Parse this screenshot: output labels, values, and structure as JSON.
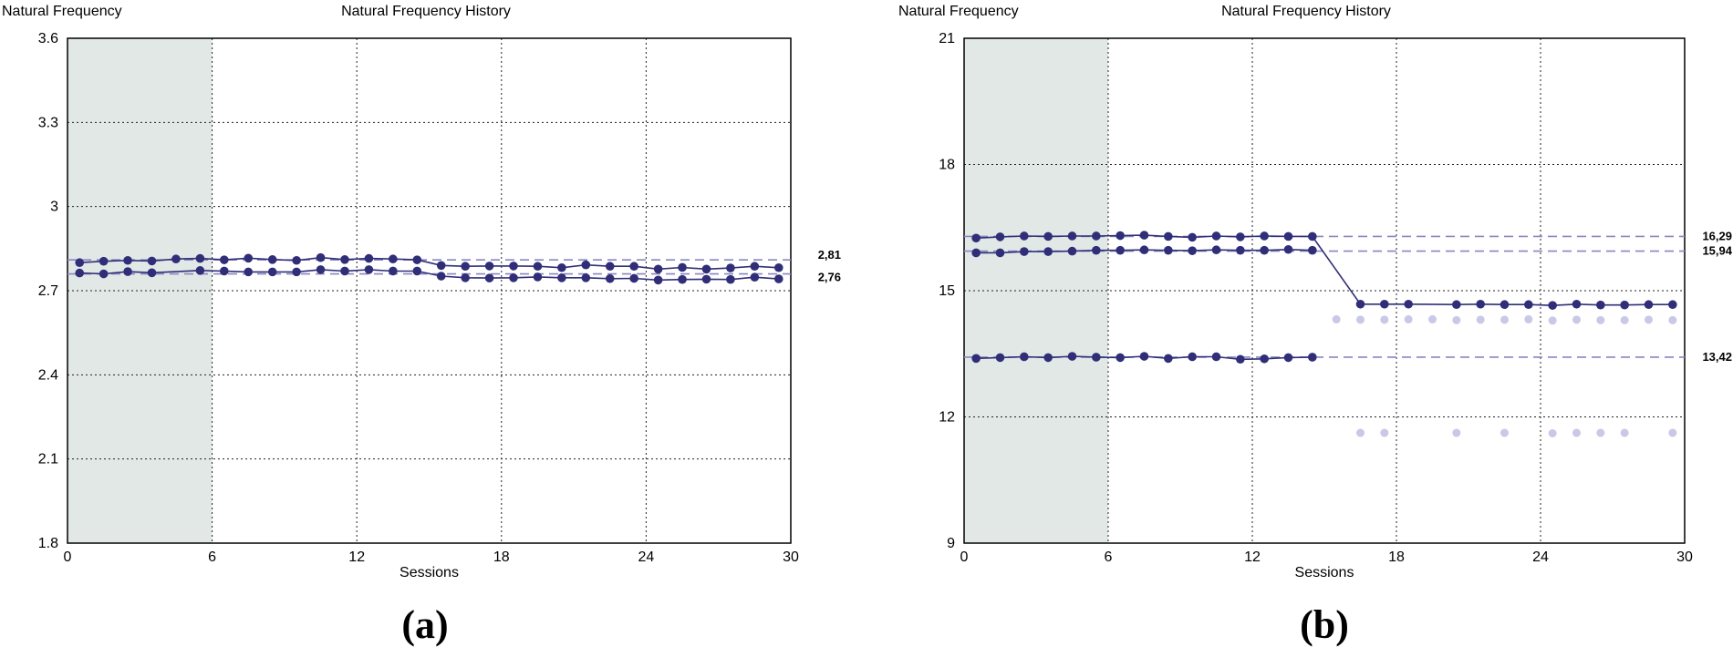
{
  "chart_data": [
    {
      "type": "line",
      "panel_label": "(a)",
      "ylabel": "Natural Frequency",
      "title": "Natural Frequency History",
      "xlabel": "Sessions",
      "xlim": [
        0,
        30
      ],
      "ylim": [
        1.8,
        3.6
      ],
      "xticks": [
        0,
        6,
        12,
        18,
        24,
        30
      ],
      "yticks": [
        1.8,
        2.1,
        2.4,
        2.7,
        3,
        3.3,
        3.6
      ],
      "ytick_labels": [
        "1.8",
        "2.1",
        "2.4",
        "2.7",
        "3",
        "3.3",
        "3.6"
      ],
      "xtick_labels": [
        "0",
        "6",
        "12",
        "18",
        "24",
        "30"
      ],
      "baseline_shading": [
        0,
        6
      ],
      "grid": true,
      "reference_lines": [
        {
          "value": 2.81,
          "label": "2,81"
        },
        {
          "value": 2.76,
          "label": "2,76"
        }
      ],
      "series": [
        {
          "style": "line",
          "points": [
            [
              0.5,
              2.8
            ],
            [
              1.5,
              2.805
            ],
            [
              2.5,
              2.808
            ],
            [
              3.5,
              2.806
            ],
            [
              4.5,
              2.813
            ],
            [
              5.5,
              2.815
            ],
            [
              6.5,
              2.81
            ],
            [
              7.5,
              2.816
            ],
            [
              8.5,
              2.811
            ],
            [
              9.5,
              2.808
            ],
            [
              10.5,
              2.818
            ],
            [
              11.5,
              2.811
            ],
            [
              12.5,
              2.815
            ],
            [
              13.5,
              2.813
            ],
            [
              14.5,
              2.81
            ],
            [
              15.5,
              2.79
            ],
            [
              16.5,
              2.787
            ],
            [
              17.5,
              2.788
            ],
            [
              18.5,
              2.788
            ],
            [
              19.5,
              2.787
            ],
            [
              20.5,
              2.782
            ],
            [
              21.5,
              2.792
            ],
            [
              22.5,
              2.787
            ],
            [
              23.5,
              2.787
            ],
            [
              24.5,
              2.777
            ],
            [
              25.5,
              2.783
            ],
            [
              26.5,
              2.777
            ],
            [
              27.5,
              2.781
            ],
            [
              28.5,
              2.787
            ],
            [
              29.5,
              2.782
            ]
          ]
        },
        {
          "style": "line",
          "points": [
            [
              0.5,
              2.763
            ],
            [
              1.5,
              2.76
            ],
            [
              2.5,
              2.768
            ],
            [
              3.5,
              2.764
            ],
            [
              5.5,
              2.772
            ],
            [
              6.5,
              2.77
            ],
            [
              7.5,
              2.767
            ],
            [
              8.5,
              2.767
            ],
            [
              9.5,
              2.767
            ],
            [
              10.5,
              2.775
            ],
            [
              11.5,
              2.77
            ],
            [
              12.5,
              2.775
            ],
            [
              13.5,
              2.77
            ],
            [
              14.5,
              2.77
            ],
            [
              15.5,
              2.752
            ],
            [
              16.5,
              2.746
            ],
            [
              17.5,
              2.745
            ],
            [
              18.5,
              2.746
            ],
            [
              19.5,
              2.749
            ],
            [
              20.5,
              2.746
            ],
            [
              21.5,
              2.746
            ],
            [
              22.5,
              2.743
            ],
            [
              23.5,
              2.744
            ],
            [
              24.5,
              2.738
            ],
            [
              25.5,
              2.74
            ],
            [
              26.5,
              2.741
            ],
            [
              27.5,
              2.74
            ],
            [
              28.5,
              2.748
            ],
            [
              29.5,
              2.742
            ]
          ]
        }
      ]
    },
    {
      "type": "line",
      "panel_label": "(b)",
      "ylabel": "Natural Frequency",
      "title": "Natural Frequency History",
      "xlabel": "Sessions",
      "xlim": [
        0,
        30
      ],
      "ylim": [
        9,
        21
      ],
      "xticks": [
        0,
        6,
        12,
        18,
        24,
        30
      ],
      "yticks": [
        9,
        12,
        15,
        18,
        21
      ],
      "ytick_labels": [
        "9",
        "12",
        "15",
        "18",
        "21"
      ],
      "xtick_labels": [
        "0",
        "6",
        "12",
        "18",
        "24",
        "30"
      ],
      "baseline_shading": [
        0,
        6
      ],
      "grid": true,
      "reference_lines": [
        {
          "value": 16.29,
          "label": "16,29"
        },
        {
          "value": 15.94,
          "label": "15,94"
        },
        {
          "value": 13.42,
          "label": "13,42"
        }
      ],
      "series": [
        {
          "style": "line",
          "points": [
            [
              0.5,
              16.25
            ],
            [
              1.5,
              16.28
            ],
            [
              2.5,
              16.3
            ],
            [
              3.5,
              16.29
            ],
            [
              4.5,
              16.3
            ],
            [
              5.5,
              16.3
            ],
            [
              6.5,
              16.31
            ],
            [
              7.5,
              16.32
            ],
            [
              8.5,
              16.29
            ],
            [
              9.5,
              16.27
            ],
            [
              10.5,
              16.3
            ],
            [
              11.5,
              16.28
            ],
            [
              12.5,
              16.3
            ],
            [
              13.5,
              16.29
            ],
            [
              14.5,
              16.29
            ],
            [
              16.5,
              14.68
            ],
            [
              17.5,
              14.68
            ],
            [
              18.5,
              14.68
            ],
            [
              20.5,
              14.67
            ],
            [
              21.5,
              14.68
            ],
            [
              22.5,
              14.67
            ],
            [
              23.5,
              14.67
            ],
            [
              24.5,
              14.65
            ],
            [
              25.5,
              14.68
            ],
            [
              26.5,
              14.66
            ],
            [
              27.5,
              14.66
            ],
            [
              28.5,
              14.67
            ],
            [
              29.5,
              14.67
            ]
          ]
        },
        {
          "style": "line",
          "points": [
            [
              0.5,
              15.9
            ],
            [
              1.5,
              15.9
            ],
            [
              2.5,
              15.93
            ],
            [
              3.5,
              15.93
            ],
            [
              4.5,
              15.94
            ],
            [
              5.5,
              15.96
            ],
            [
              6.5,
              15.96
            ],
            [
              7.5,
              15.97
            ],
            [
              8.5,
              15.96
            ],
            [
              9.5,
              15.95
            ],
            [
              10.5,
              15.97
            ],
            [
              11.5,
              15.96
            ],
            [
              12.5,
              15.96
            ],
            [
              13.5,
              15.98
            ],
            [
              14.5,
              15.96
            ]
          ]
        },
        {
          "style": "line",
          "points": [
            [
              0.5,
              13.39
            ],
            [
              1.5,
              13.41
            ],
            [
              2.5,
              13.43
            ],
            [
              3.5,
              13.41
            ],
            [
              4.5,
              13.44
            ],
            [
              5.5,
              13.42
            ],
            [
              6.5,
              13.41
            ],
            [
              7.5,
              13.44
            ],
            [
              8.5,
              13.39
            ],
            [
              9.5,
              13.43
            ],
            [
              10.5,
              13.43
            ],
            [
              11.5,
              13.37
            ],
            [
              12.5,
              13.38
            ],
            [
              13.5,
              13.41
            ],
            [
              14.5,
              13.42
            ]
          ]
        },
        {
          "style": "dots",
          "points": [
            [
              15.5,
              14.32
            ],
            [
              16.5,
              14.31
            ],
            [
              17.5,
              14.31
            ],
            [
              18.5,
              14.32
            ],
            [
              19.5,
              14.32
            ],
            [
              20.5,
              14.3
            ],
            [
              21.5,
              14.31
            ],
            [
              22.5,
              14.31
            ],
            [
              23.5,
              14.32
            ],
            [
              24.5,
              14.29
            ],
            [
              25.5,
              14.31
            ],
            [
              26.5,
              14.3
            ],
            [
              27.5,
              14.3
            ],
            [
              28.5,
              14.31
            ],
            [
              29.5,
              14.3
            ]
          ]
        },
        {
          "style": "dots",
          "points": [
            [
              16.5,
              11.62
            ],
            [
              17.5,
              11.62
            ],
            [
              20.5,
              11.62
            ],
            [
              22.5,
              11.62
            ],
            [
              24.5,
              11.61
            ],
            [
              25.5,
              11.62
            ],
            [
              26.5,
              11.62
            ],
            [
              27.5,
              11.62
            ],
            [
              29.5,
              11.62
            ]
          ]
        }
      ]
    }
  ]
}
